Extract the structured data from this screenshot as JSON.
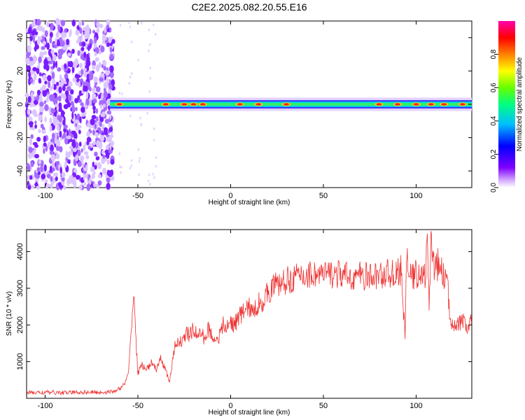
{
  "title": "C2E2.2025.082.20.55.E16",
  "colors": {
    "snr_line": "#ee3333",
    "frame": "#000000"
  },
  "chart_data": [
    {
      "type": "heatmap",
      "title": "C2E2.2025.082.20.55.E16",
      "xlabel": "Height of straight line (km)",
      "ylabel": "Frequency (Hz)",
      "xlim": [
        -110,
        130
      ],
      "ylim": [
        -50,
        50
      ],
      "xticks": [
        "-100",
        "-50",
        "0",
        "50",
        "100"
      ],
      "yticks": [
        "-40",
        "-20",
        "0",
        "20",
        "40"
      ],
      "colorbar": {
        "label": "Normalized spectral amplitude",
        "range": [
          0,
          1
        ],
        "ticks": [
          "0.0",
          "0.2",
          "0.4",
          "0.6",
          "0.8"
        ],
        "colormap": "rainbow (white-purple-blue-cyan-green-yellow-red-magenta)"
      },
      "description_of_signal": {
        "noise_region_x": [
          -110,
          -65
        ],
        "carrier_start_x": -65,
        "carrier_frequency_hz": 0,
        "carrier_peaks_x": [
          -60,
          -35,
          -25,
          -20,
          -15,
          5,
          15,
          30,
          80,
          90,
          100,
          108,
          115,
          125
        ]
      }
    },
    {
      "type": "line",
      "xlabel": "Height of straight line (km)",
      "ylabel": "SNR (10 * v/v)",
      "xlim": [
        -110,
        130
      ],
      "ylim": [
        0,
        4600
      ],
      "xticks": [
        "-100",
        "-50",
        "0",
        "50",
        "100"
      ],
      "yticks": [
        "1000",
        "2000",
        "3000",
        "4000"
      ],
      "series": [
        {
          "x": [
            -110,
            -100,
            -90,
            -80,
            -70,
            -64,
            -60,
            -57,
            -55,
            -54,
            -53,
            -52,
            -51,
            -50,
            -48,
            -45,
            -42,
            -40,
            -38,
            -36,
            -34,
            -33,
            -31,
            -30,
            -28,
            -26,
            -24,
            -22,
            -20,
            -18,
            -16,
            -14,
            -12,
            -10,
            -8,
            -6,
            -4,
            -2,
            0,
            2,
            4,
            6,
            8,
            10,
            12,
            14,
            16,
            18,
            20,
            22,
            24,
            26,
            28,
            30,
            35,
            40,
            45,
            50,
            55,
            60,
            65,
            70,
            75,
            80,
            85,
            90,
            92,
            93,
            94,
            95,
            96,
            98,
            100,
            102,
            104,
            105,
            106,
            107,
            108,
            110,
            112,
            114,
            116,
            117,
            118,
            120,
            122,
            125,
            128,
            130
          ],
          "values": [
            150,
            160,
            150,
            170,
            160,
            180,
            250,
            400,
            700,
            1500,
            2400,
            2800,
            1500,
            700,
            900,
            800,
            1000,
            700,
            1100,
            900,
            600,
            450,
            1100,
            1400,
            1600,
            1500,
            1800,
            1700,
            1900,
            1700,
            1800,
            1600,
            1900,
            1700,
            1600,
            1700,
            2000,
            1900,
            2100,
            2000,
            2200,
            2300,
            2400,
            2500,
            2300,
            2500,
            2700,
            2600,
            2900,
            3000,
            3100,
            3100,
            3150,
            3200,
            3300,
            3350,
            3400,
            3350,
            3400,
            3350,
            3300,
            3350,
            3300,
            3350,
            3400,
            3400,
            3500,
            2500,
            1700,
            4200,
            3300,
            3300,
            3400,
            3400,
            3300,
            3400,
            4300,
            2400,
            4500,
            3400,
            3700,
            3400,
            3300,
            3100,
            2200,
            2100,
            2000,
            2100,
            1900,
            2100
          ]
        }
      ]
    }
  ]
}
